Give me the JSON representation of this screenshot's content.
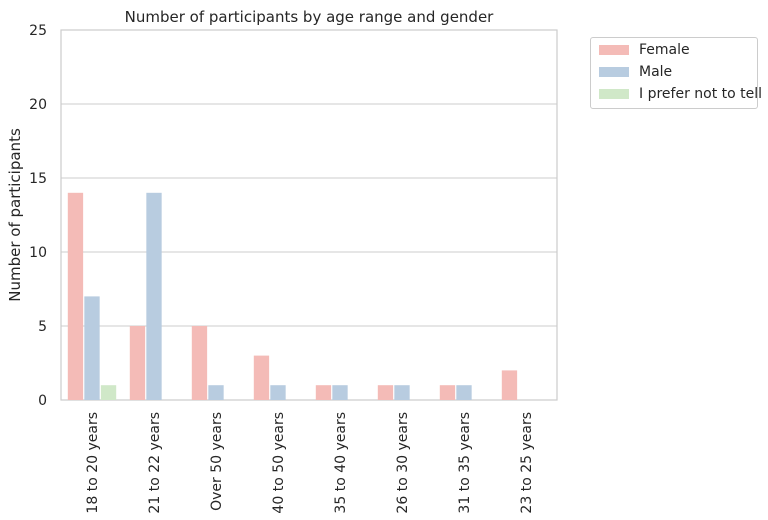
{
  "chart_data": {
    "type": "bar",
    "title": "Number of participants by age range and gender",
    "xlabel": "",
    "ylabel": "Number of participants",
    "ylim": [
      0,
      25
    ],
    "yticks": [
      0,
      5,
      10,
      15,
      20,
      25
    ],
    "grid": "horizontal",
    "legend_position": "outside top-right",
    "categories": [
      "18 to 20 years",
      "21 to 22 years",
      "Over 50 years",
      "40 to 50 years",
      "35 to 40 years",
      "26 to 30 years",
      "31 to 35 years",
      "23 to 25 years"
    ],
    "series": [
      {
        "name": "Female",
        "color": "#f4bbb7",
        "values": [
          14,
          5,
          5,
          3,
          1,
          1,
          1,
          2
        ]
      },
      {
        "name": "Male",
        "color": "#b8cce0",
        "values": [
          7,
          14,
          1,
          1,
          1,
          1,
          1,
          0
        ]
      },
      {
        "name": "I prefer not to tell",
        "color": "#d0e8c8",
        "values": [
          1,
          0,
          0,
          0,
          0,
          0,
          0,
          0
        ]
      }
    ]
  }
}
